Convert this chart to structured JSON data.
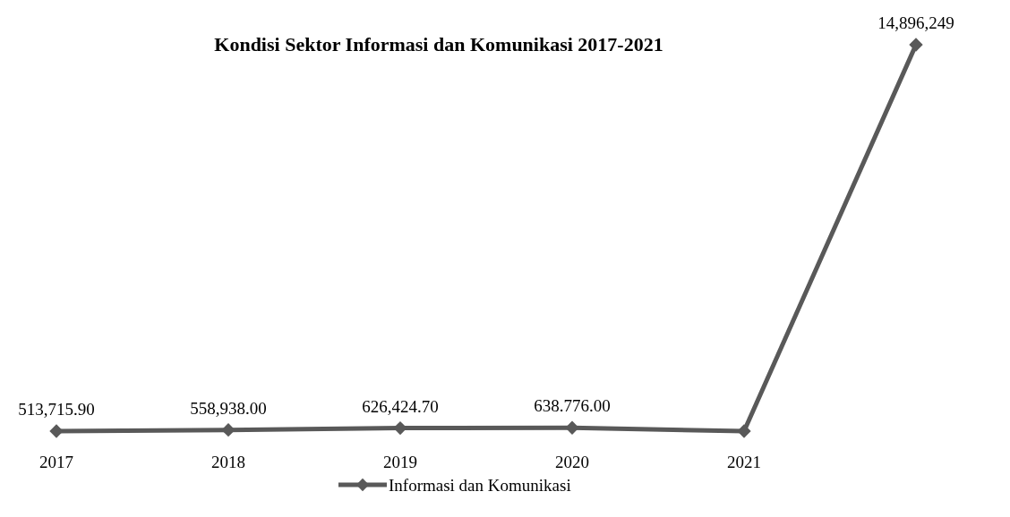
{
  "chart_data": {
    "type": "line",
    "title": "Kondisi Sektor Informasi dan Komunikasi 2017-2021",
    "categories": [
      "2017",
      "2018",
      "2019",
      "2020",
      "2021",
      null
    ],
    "series": [
      {
        "name": "Informasi dan Komunikasi",
        "color": "#595959",
        "values": [
          513715.9,
          558938,
          626424.7,
          638776,
          513715.9,
          14896249
        ],
        "value_labels": [
          "513,715.90",
          "558,938.00",
          "626,424.70",
          "638.776.00",
          null,
          "14,896,249"
        ]
      }
    ],
    "marker": "diamond",
    "legend": "bottom"
  }
}
